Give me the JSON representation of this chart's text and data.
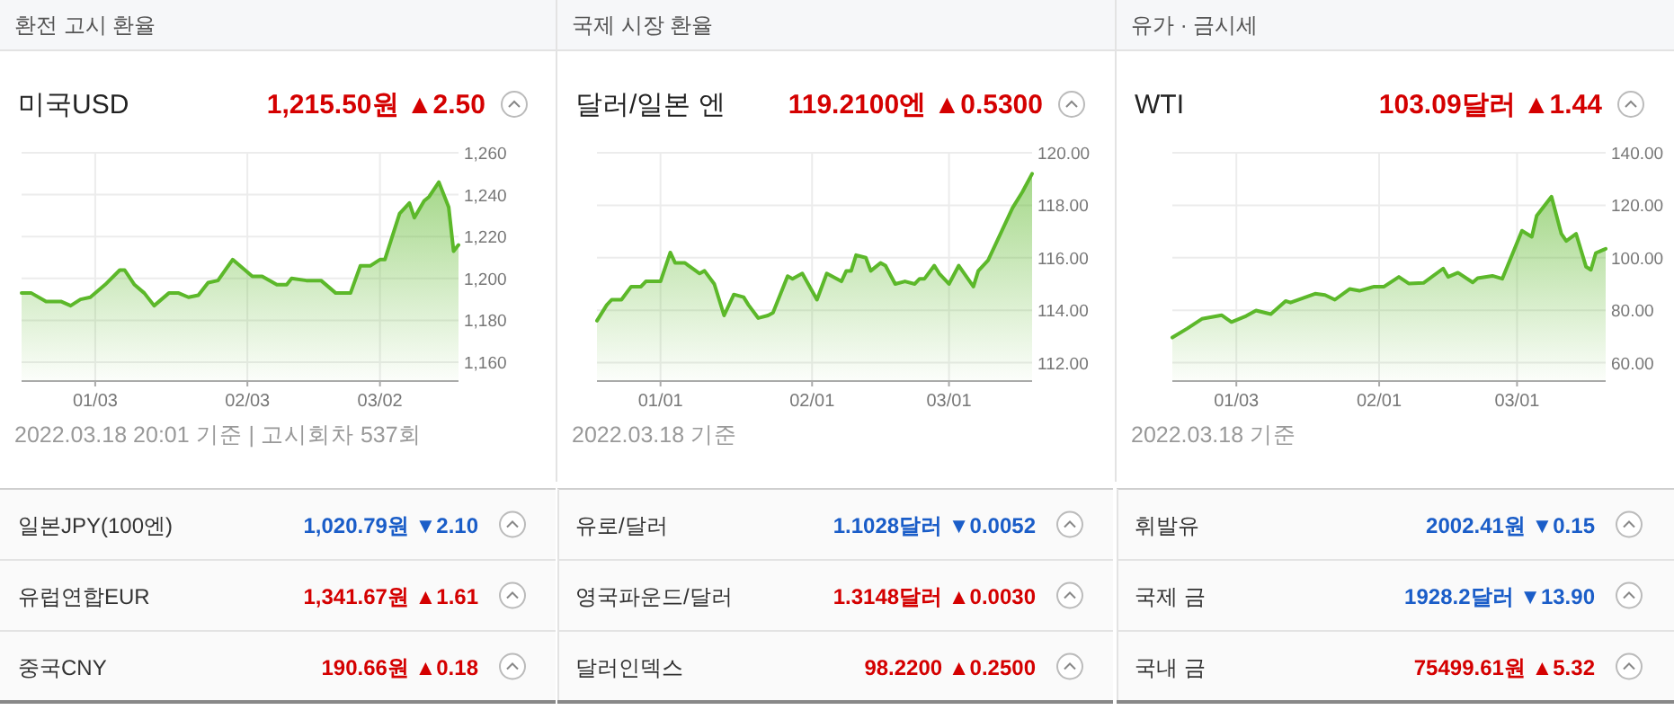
{
  "chart_data": [
    {
      "type": "area",
      "title": "환전 고시 환율",
      "subtitle": "미국USD",
      "annotations": [
        "1,215.50원 ▲2.50",
        "2022.03.18 20:01 기준 | 고시회차 537회"
      ],
      "x": [
        "2021-12-19",
        "2021-12-21",
        "2021-12-24",
        "2021-12-27",
        "2021-12-29",
        "2021-12-31",
        "2022-01-02",
        "2022-01-05",
        "2022-01-08",
        "2022-01-09",
        "2022-01-11",
        "2022-01-13",
        "2022-01-15",
        "2022-01-18",
        "2022-01-20",
        "2022-01-22",
        "2022-01-24",
        "2022-01-26",
        "2022-01-28",
        "2022-01-31",
        "2022-02-04",
        "2022-02-06",
        "2022-02-09",
        "2022-02-11",
        "2022-02-12",
        "2022-02-15",
        "2022-02-18",
        "2022-02-21",
        "2022-02-24",
        "2022-02-26",
        "2022-02-28",
        "2022-03-02",
        "2022-03-03",
        "2022-03-06",
        "2022-03-08",
        "2022-03-09",
        "2022-03-11",
        "2022-03-12",
        "2022-03-14",
        "2022-03-16",
        "2022-03-17",
        "2022-03-18"
      ],
      "series": [
        {
          "color": "#5cb82a",
          "values": [
            1193,
            1193,
            1189,
            1189,
            1187,
            1190,
            1191,
            1197,
            1204,
            1204,
            1197,
            1193,
            1187,
            1193,
            1193,
            1191,
            1192,
            1198,
            1199,
            1209,
            1201,
            1201,
            1197,
            1197,
            1200,
            1199,
            1199,
            1193,
            1193,
            1206,
            1206,
            1209,
            1209,
            1231,
            1236,
            1229,
            1237,
            1239,
            1246,
            1234,
            1213,
            1216
          ]
        }
      ],
      "xlim": [
        "2021-12-19",
        "2022-03-18"
      ],
      "xticks": [
        {
          "value": "2022-01-03",
          "label": "01/03"
        },
        {
          "value": "2022-02-03",
          "label": "02/03"
        },
        {
          "value": "2022-03-02",
          "label": "03/02"
        }
      ],
      "ylim": [
        1151,
        1260
      ],
      "yticks": [
        {
          "value": 1160,
          "label": "1,160"
        },
        {
          "value": 1180,
          "label": "1,180"
        },
        {
          "value": 1200,
          "label": "1,200"
        },
        {
          "value": 1220,
          "label": "1,220"
        },
        {
          "value": 1240,
          "label": "1,240"
        },
        {
          "value": 1260,
          "label": "1,260"
        }
      ],
      "grid": true
    },
    {
      "type": "area",
      "title": "국제 시장 환율",
      "subtitle": "달러/일본 엔",
      "annotations": [
        "119.2100엔 ▲0.5300",
        "2022.03.18 기준"
      ],
      "x": [
        "2021-12-19",
        "2021-12-21",
        "2021-12-22",
        "2021-12-24",
        "2021-12-26",
        "2021-12-28",
        "2021-12-29",
        "2022-01-01",
        "2022-01-03",
        "2022-01-04",
        "2022-01-06",
        "2022-01-09",
        "2022-01-10",
        "2022-01-12",
        "2022-01-14",
        "2022-01-16",
        "2022-01-18",
        "2022-01-19",
        "2022-01-21",
        "2022-01-23",
        "2022-01-24",
        "2022-01-27",
        "2022-01-28",
        "2022-01-30",
        "2022-02-02",
        "2022-02-04",
        "2022-02-07",
        "2022-02-08",
        "2022-02-09",
        "2022-02-10",
        "2022-02-12",
        "2022-02-13",
        "2022-02-15",
        "2022-02-16",
        "2022-02-18",
        "2022-02-20",
        "2022-02-22",
        "2022-02-23",
        "2022-02-24",
        "2022-02-26",
        "2022-02-27",
        "2022-03-01",
        "2022-03-03",
        "2022-03-06",
        "2022-03-07",
        "2022-03-09",
        "2022-03-12",
        "2022-03-14",
        "2022-03-16",
        "2022-03-18"
      ],
      "series": [
        {
          "color": "#5cb82a",
          "values": [
            113.6,
            114.2,
            114.4,
            114.4,
            114.9,
            114.9,
            115.1,
            115.1,
            116.2,
            115.8,
            115.8,
            115.4,
            115.5,
            115.0,
            113.8,
            114.6,
            114.5,
            114.2,
            113.7,
            113.8,
            113.9,
            115.3,
            115.2,
            115.4,
            114.4,
            115.4,
            115.1,
            115.5,
            115.5,
            116.1,
            116.0,
            115.5,
            115.8,
            115.7,
            115.0,
            115.1,
            115.0,
            115.2,
            115.2,
            115.7,
            115.4,
            115.0,
            115.7,
            114.9,
            115.5,
            115.9,
            117.1,
            117.9,
            118.5,
            119.2
          ]
        }
      ],
      "xlim": [
        "2021-12-19",
        "2022-03-18"
      ],
      "xticks": [
        {
          "value": "2022-01-01",
          "label": "01/01"
        },
        {
          "value": "2022-02-01",
          "label": "02/01"
        },
        {
          "value": "2022-03-01",
          "label": "03/01"
        }
      ],
      "ylim": [
        111.3,
        120
      ],
      "yticks": [
        {
          "value": 112,
          "label": "112.00"
        },
        {
          "value": 114,
          "label": "114.00"
        },
        {
          "value": 116,
          "label": "116.00"
        },
        {
          "value": 118,
          "label": "118.00"
        },
        {
          "value": 120,
          "label": "120.00"
        }
      ],
      "grid": true
    },
    {
      "type": "area",
      "title": "유가 · 금시세",
      "subtitle": "WTI",
      "annotations": [
        "103.09달러 ▲1.44",
        "2022.03.18 기준"
      ],
      "x": [
        "2021-12-21",
        "2021-12-24",
        "2021-12-27",
        "2021-12-31",
        "2022-01-02",
        "2022-01-05",
        "2022-01-07",
        "2022-01-10",
        "2022-01-13",
        "2022-01-14",
        "2022-01-19",
        "2022-01-21",
        "2022-01-23",
        "2022-01-26",
        "2022-01-28",
        "2022-01-31",
        "2022-02-02",
        "2022-02-05",
        "2022-02-07",
        "2022-02-10",
        "2022-02-14",
        "2022-02-15",
        "2022-02-17",
        "2022-02-20",
        "2022-02-21",
        "2022-02-24",
        "2022-02-26",
        "2022-03-02",
        "2022-03-04",
        "2022-03-05",
        "2022-03-08",
        "2022-03-10",
        "2022-03-11",
        "2022-03-13",
        "2022-03-15",
        "2022-03-16",
        "2022-03-17",
        "2022-03-19"
      ],
      "series": [
        {
          "color": "#5cb82a",
          "values": [
            69.6,
            73.0,
            76.7,
            78.1,
            75.5,
            77.8,
            79.9,
            78.5,
            83.5,
            82.9,
            86.3,
            85.8,
            84.0,
            88.1,
            87.4,
            89.0,
            89.0,
            92.7,
            90.2,
            90.4,
            95.9,
            92.7,
            94.3,
            90.6,
            92.2,
            93.1,
            92.0,
            110.3,
            108.0,
            116.0,
            123.3,
            109.1,
            106.4,
            109.1,
            96.6,
            95.4,
            101.8,
            103.4
          ]
        }
      ],
      "xlim": [
        "2021-12-21",
        "2022-03-19"
      ],
      "xticks": [
        {
          "value": "2022-01-03",
          "label": "01/03"
        },
        {
          "value": "2022-02-01",
          "label": "02/01"
        },
        {
          "value": "2022-03-01",
          "label": "03/01"
        }
      ],
      "ylim": [
        53,
        140
      ],
      "yticks": [
        {
          "value": 60,
          "label": "60.00"
        },
        {
          "value": 80,
          "label": "80.00"
        },
        {
          "value": 100,
          "label": "100.00"
        },
        {
          "value": 120,
          "label": "120.00"
        },
        {
          "value": 140,
          "label": "140.00"
        }
      ],
      "grid": true
    },
    {
      "type": "other",
      "categories": [
        "일본JPY(100엔)",
        "유럽연합EUR",
        "중국CNY"
      ],
      "value_labels": [
        "1,020.79원 ▼2.10",
        "1,341.67원 ▲1.61",
        "190.66원 ▲0.18"
      ],
      "colors": [
        "#1a5dc8",
        "#d40000",
        "#d40000"
      ]
    },
    {
      "type": "other",
      "categories": [
        "유로/달러",
        "영국파운드/달러",
        "달러인덱스"
      ],
      "value_labels": [
        "1.1028달러 ▼0.0052",
        "1.3148달러 ▲0.0030",
        "98.2200 ▲0.2500"
      ],
      "colors": [
        "#1a5dc8",
        "#d40000",
        "#d40000"
      ]
    },
    {
      "type": "other",
      "categories": [
        "휘발유",
        "국제 금",
        "국내 금"
      ],
      "value_labels": [
        "2002.41원 ▼0.15",
        "1928.2달러 ▼13.90",
        "75499.61원 ▲5.32"
      ],
      "colors": [
        "#1a5dc8",
        "#1a5dc8",
        "#d40000"
      ]
    }
  ]
}
